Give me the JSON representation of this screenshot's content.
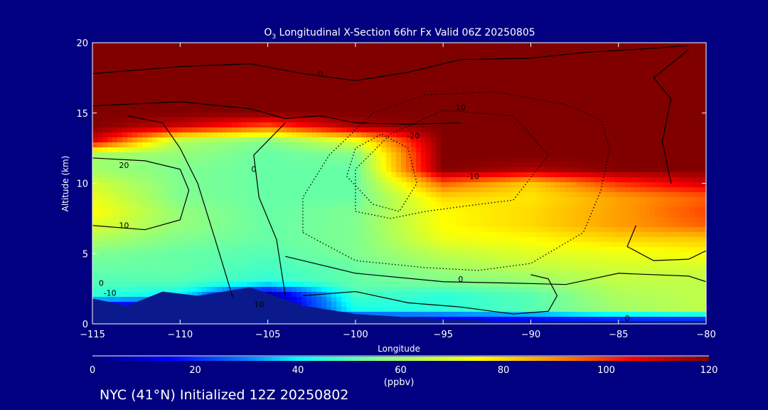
{
  "chart_data": {
    "type": "heatmap",
    "title_prefix": "O",
    "title_sub": "3",
    "title": " Longitudinal X-Section 66hr  Fx Valid 06Z 20250805",
    "xlabel": "Longitude",
    "ylabel": "Altitude (km)",
    "xlim": [
      -115,
      -80
    ],
    "ylim": [
      0,
      20
    ],
    "xticks": [
      "−115",
      "−110",
      "−105",
      "−100",
      "−95",
      "−90",
      "−85",
      "−80"
    ],
    "xtick_values": [
      -115,
      -110,
      -105,
      -100,
      -95,
      -90,
      -85,
      -80
    ],
    "yticks": [
      "0",
      "5",
      "10",
      "15",
      "20"
    ],
    "ytick_values": [
      0,
      5,
      10,
      15,
      20
    ],
    "colorbar": {
      "ticks": [
        "0",
        "20",
        "40",
        "60",
        "80",
        "100",
        "120"
      ],
      "range": [
        0,
        120
      ],
      "units": "(ppbv)",
      "stops": [
        [
          0,
          "#00007f"
        ],
        [
          15,
          "#0000ff"
        ],
        [
          30,
          "#0080ff"
        ],
        [
          40,
          "#00ffff"
        ],
        [
          55,
          "#80ff90"
        ],
        [
          75,
          "#ffff00"
        ],
        [
          90,
          "#ff9000"
        ],
        [
          105,
          "#ff0000"
        ],
        [
          120,
          "#800000"
        ]
      ]
    },
    "longitudes": [
      -115,
      -110,
      -105,
      -100,
      -95,
      -90,
      -85,
      -80
    ],
    "altitudes": [
      0,
      1,
      2,
      3,
      4,
      5,
      6,
      7,
      8,
      9,
      10,
      11,
      12,
      13,
      14,
      15,
      20
    ],
    "values_ppbv": [
      [
        0,
        0,
        0,
        0,
        0,
        0,
        0,
        0
      ],
      [
        0,
        0,
        0,
        42,
        45,
        50,
        60,
        65
      ],
      [
        45,
        40,
        0,
        48,
        45,
        50,
        62,
        65
      ],
      [
        50,
        50,
        45,
        52,
        55,
        58,
        65,
        65
      ],
      [
        52,
        52,
        48,
        52,
        60,
        65,
        68,
        68
      ],
      [
        55,
        52,
        50,
        55,
        65,
        70,
        72,
        75
      ],
      [
        62,
        55,
        52,
        55,
        72,
        75,
        80,
        82
      ],
      [
        70,
        58,
        52,
        55,
        75,
        80,
        88,
        95
      ],
      [
        75,
        58,
        52,
        55,
        75,
        80,
        88,
        98
      ],
      [
        72,
        55,
        52,
        52,
        80,
        78,
        88,
        95
      ],
      [
        68,
        55,
        52,
        52,
        95,
        82,
        100,
        110
      ],
      [
        60,
        55,
        52,
        52,
        120,
        115,
        120,
        120
      ],
      [
        60,
        58,
        52,
        55,
        120,
        120,
        120,
        120
      ],
      [
        110,
        62,
        55,
        70,
        120,
        120,
        120,
        120
      ],
      [
        120,
        110,
        95,
        115,
        120,
        120,
        120,
        120
      ],
      [
        120,
        120,
        120,
        120,
        120,
        120,
        120,
        120
      ],
      [
        120,
        120,
        120,
        120,
        120,
        120,
        120,
        120
      ]
    ],
    "terrain_km": [
      [
        -115,
        1.8
      ],
      [
        -113,
        1.3
      ],
      [
        -111,
        2.3
      ],
      [
        -109,
        2.0
      ],
      [
        -106,
        2.6
      ],
      [
        -103,
        1.3
      ],
      [
        -100,
        0.7
      ],
      [
        -96,
        0.4
      ],
      [
        -92,
        0.2
      ],
      [
        -80,
        0.2
      ]
    ],
    "contours": [
      {
        "level": 0,
        "dashed": false,
        "points": [
          [
            -115,
            17.8
          ],
          [
            -110,
            18.3
          ],
          [
            -106,
            18.5
          ],
          [
            -103,
            17.8
          ],
          [
            -100,
            17.3
          ],
          [
            -97,
            17.9
          ],
          [
            -94,
            18.8
          ],
          [
            -90,
            18.9
          ],
          [
            -87,
            19.3
          ],
          [
            -83,
            19.6
          ],
          [
            -81,
            19.8
          ]
        ]
      },
      {
        "level": 0,
        "dashed": false,
        "points": [
          [
            -115,
            15.5
          ],
          [
            -110,
            15.8
          ],
          [
            -106,
            15.3
          ],
          [
            -104,
            14.6
          ],
          [
            -102,
            14.8
          ],
          [
            -100,
            14.3
          ],
          [
            -97,
            14.2
          ],
          [
            -94,
            14.3
          ]
        ]
      },
      {
        "level": 0,
        "dashed": false,
        "points": [
          [
            -107,
            1.9
          ],
          [
            -108,
            6
          ],
          [
            -109,
            10
          ],
          [
            -110,
            12.5
          ],
          [
            -111,
            14.3
          ],
          [
            -113,
            14.8
          ]
        ]
      },
      {
        "level": 0,
        "dashed": false,
        "points": [
          [
            -104,
            2.0
          ],
          [
            -104.5,
            6
          ],
          [
            -105.5,
            9
          ],
          [
            -105.8,
            12
          ],
          [
            -104,
            14.3
          ]
        ]
      },
      {
        "level": 0,
        "dashed": false,
        "points": [
          [
            -103,
            2.0
          ],
          [
            -100,
            2.3
          ],
          [
            -97,
            1.5
          ],
          [
            -94,
            1.2
          ],
          [
            -91,
            0.7
          ],
          [
            -89,
            0.9
          ],
          [
            -88.5,
            2.0
          ],
          [
            -89,
            3.2
          ],
          [
            -90,
            3.5
          ]
        ]
      },
      {
        "level": 0,
        "dashed": false,
        "points": [
          [
            -115,
            7.0
          ],
          [
            -112,
            6.7
          ],
          [
            -110,
            7.4
          ],
          [
            -109.5,
            9.5
          ],
          [
            -110,
            11
          ],
          [
            -112,
            11.6
          ],
          [
            -115,
            11.8
          ]
        ]
      },
      {
        "level": 0,
        "dashed": false,
        "points": [
          [
            -104,
            4.8
          ],
          [
            -100,
            3.6
          ],
          [
            -95,
            3.0
          ],
          [
            -91,
            2.9
          ],
          [
            -88,
            2.8
          ],
          [
            -85,
            3.6
          ],
          [
            -81,
            3.4
          ],
          [
            -80,
            3.0
          ]
        ]
      },
      {
        "level": 0,
        "dashed": false,
        "points": [
          [
            -84,
            7.0
          ],
          [
            -84.5,
            5.5
          ],
          [
            -83,
            4.5
          ],
          [
            -81,
            4.6
          ],
          [
            -80,
            5.2
          ]
        ]
      },
      {
        "level": 0,
        "dashed": false,
        "points": [
          [
            -82,
            10
          ],
          [
            -82.5,
            13
          ],
          [
            -82,
            16
          ],
          [
            -83,
            17.5
          ],
          [
            -81,
            19.5
          ]
        ]
      },
      {
        "level": -10,
        "dashed": true,
        "points": [
          [
            -103,
            6.5
          ],
          [
            -100,
            4.5
          ],
          [
            -96,
            4.0
          ],
          [
            -93,
            3.8
          ],
          [
            -90,
            4.3
          ],
          [
            -87,
            6.5
          ],
          [
            -86,
            9.5
          ],
          [
            -85.5,
            12.5
          ],
          [
            -86,
            14.5
          ],
          [
            -88,
            15.6
          ],
          [
            -92,
            16.5
          ],
          [
            -96,
            16.3
          ],
          [
            -99,
            15.0
          ],
          [
            -101.5,
            12
          ],
          [
            -103,
            9
          ],
          [
            -103,
            6.5
          ]
        ]
      },
      {
        "level": -10,
        "dashed": true,
        "points": [
          [
            -100,
            8
          ],
          [
            -98,
            7.5
          ],
          [
            -96,
            8.0
          ],
          [
            -93,
            8.5
          ],
          [
            -91,
            8.8
          ],
          [
            -89,
            12
          ],
          [
            -91,
            14.8
          ],
          [
            -95,
            15.2
          ],
          [
            -98,
            13.5
          ],
          [
            -100,
            11
          ],
          [
            -100,
            8
          ]
        ]
      },
      {
        "level": -20,
        "dashed": true,
        "points": [
          [
            -99,
            8.5
          ],
          [
            -97.5,
            8.0
          ],
          [
            -96.5,
            10
          ],
          [
            -97,
            12.5
          ],
          [
            -98.5,
            13.5
          ],
          [
            -100,
            12.5
          ],
          [
            -100.5,
            10.5
          ],
          [
            -99,
            8.5
          ]
        ]
      }
    ],
    "contour_labels": [
      {
        "text": "0",
        "lon": -102,
        "lat_alt": 17.6
      },
      {
        "text": "10",
        "lon": -94,
        "lat_alt": 15.2
      },
      {
        "text": "-20",
        "lon": -96.7,
        "lat_alt": 13.2
      },
      {
        "text": "-10",
        "lon": -93.3,
        "lat_alt": 10.3
      },
      {
        "text": "20",
        "lon": -113.2,
        "lat_alt": 11.1
      },
      {
        "text": "0",
        "lon": -105.8,
        "lat_alt": 10.8
      },
      {
        "text": "10",
        "lon": -113.2,
        "lat_alt": 6.8
      },
      {
        "text": "0",
        "lon": -94,
        "lat_alt": 3.0
      },
      {
        "text": "0",
        "lon": -114.5,
        "lat_alt": 2.7
      },
      {
        "text": "-10",
        "lon": -114,
        "lat_alt": 2.0
      },
      {
        "text": "10",
        "lon": -105.5,
        "lat_alt": 1.2
      },
      {
        "text": "0",
        "lon": -84.5,
        "lat_alt": 0.2
      }
    ]
  },
  "footer": {
    "station_text": "NYC (41°N) Initialized 12Z 20250802"
  }
}
